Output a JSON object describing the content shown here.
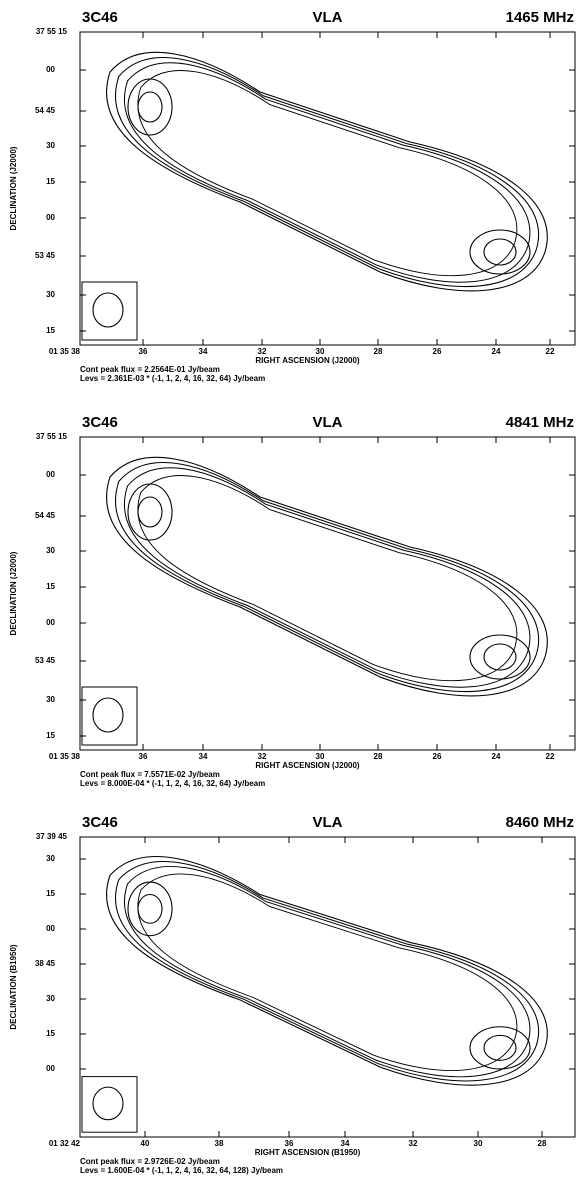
{
  "panels": [
    {
      "source": "3C46",
      "telescope": "VLA",
      "frequency": "1465 MHz",
      "ylabel": "DECLINATION (J2000)",
      "xlabel": "RIGHT ASCENSION (J2000)",
      "yticks": [
        "37 55 15",
        "00",
        "54 45",
        "30",
        "15",
        "00",
        "53 45",
        "30",
        "15"
      ],
      "xticks": [
        "01 35 38",
        "36",
        "34",
        "32",
        "30",
        "28",
        "26",
        "24",
        "22"
      ],
      "peak": "Cont peak flux =  2.2564E-01 Jy/beam",
      "levels": "Levs = 2.361E-03 * (-1, 1, 2, 4, 16, 32, 64) Jy/beam"
    },
    {
      "source": "3C46",
      "telescope": "VLA",
      "frequency": "4841 MHz",
      "ylabel": "DECLINATION (J2000)",
      "xlabel": "RIGHT ASCENSION (J2000)",
      "yticks": [
        "37 55 15",
        "00",
        "54 45",
        "30",
        "15",
        "00",
        "53 45",
        "30",
        "15"
      ],
      "xticks": [
        "01 35 38",
        "36",
        "34",
        "32",
        "30",
        "28",
        "26",
        "24",
        "22"
      ],
      "peak": "Cont peak flux =  7.5571E-02 Jy/beam",
      "levels": "Levs = 8.000E-04 * (-1, 1, 2, 4, 16, 32, 64) Jy/beam"
    },
    {
      "source": "3C46",
      "telescope": "VLA",
      "frequency": "8460 MHz",
      "ylabel": "DECLINATION (B1950)",
      "xlabel": "RIGHT ASCENSION (B1950)",
      "yticks": [
        "37 39 45",
        "30",
        "15",
        "00",
        "38 45",
        "30",
        "15",
        "00"
      ],
      "xticks": [
        "01 32 42",
        "40",
        "38",
        "36",
        "34",
        "32",
        "30",
        "28"
      ],
      "peak": "Cont peak flux =  2.9726E-02 Jy/beam",
      "levels": "Levs = 1.600E-04 * (-1, 1, 2, 4, 16, 32, 64, 128) Jy/beam"
    }
  ]
}
